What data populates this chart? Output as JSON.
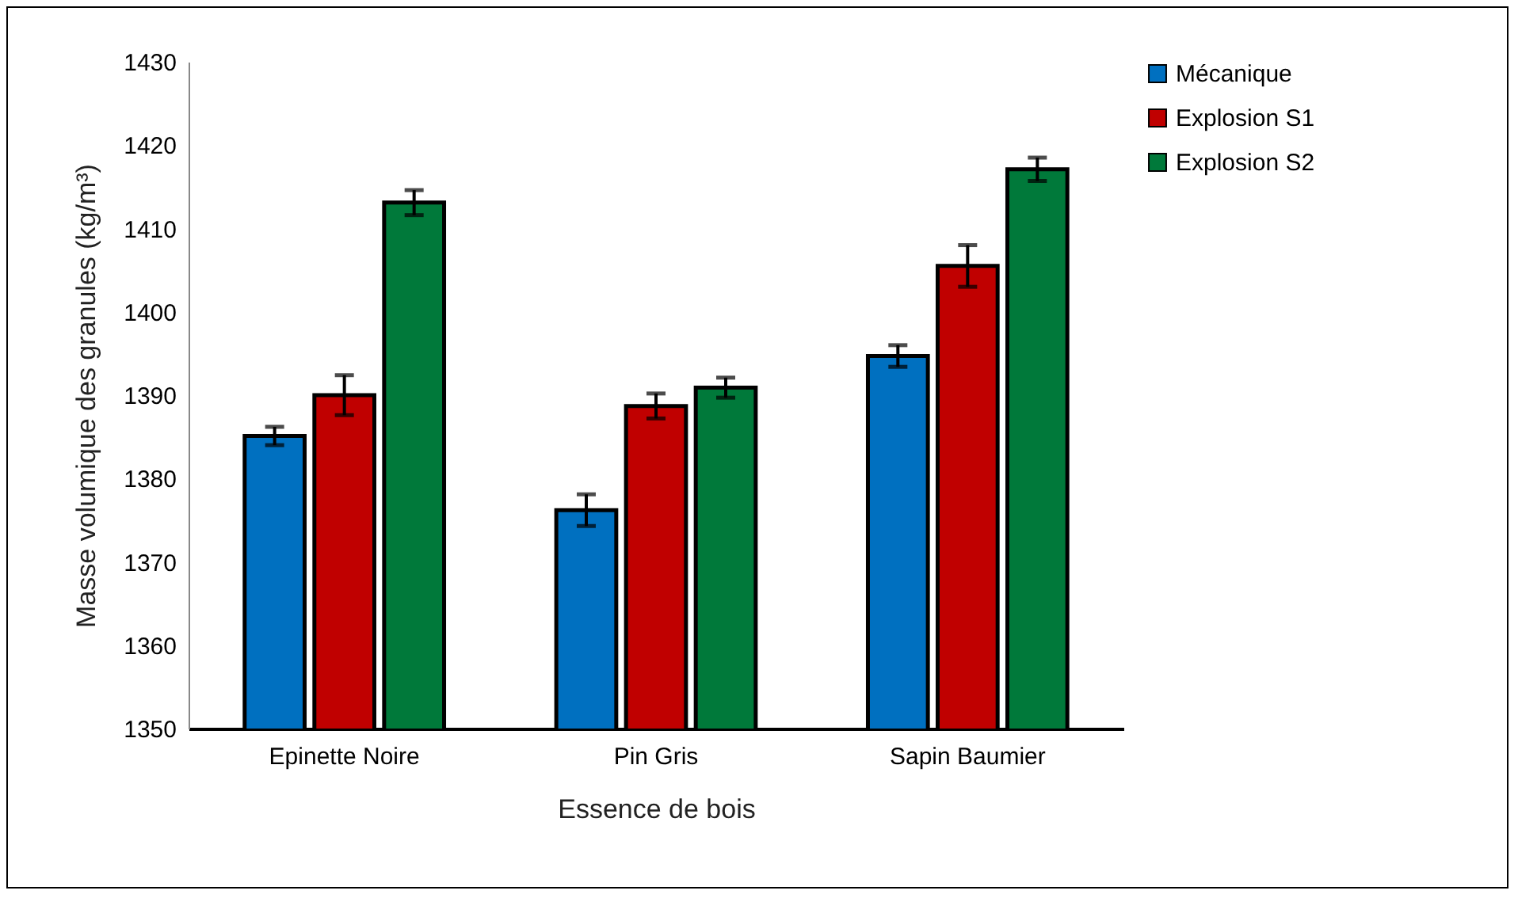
{
  "chart_data": {
    "type": "bar",
    "xlabel": "Essence de bois",
    "ylabel": "Masse volumique des granules (kg/m³)",
    "categories": [
      "Epinette Noire",
      "Pin Gris",
      "Sapin Baumier"
    ],
    "series": [
      {
        "name": "Mécanique",
        "color": "#0070c0",
        "values": [
          1385.1,
          1376.2,
          1394.7
        ],
        "errors": [
          1.1,
          1.9,
          1.3
        ]
      },
      {
        "name": "Explosion S1",
        "color": "#c00000",
        "values": [
          1390.0,
          1388.7,
          1405.5
        ],
        "errors": [
          2.4,
          1.5,
          2.5
        ]
      },
      {
        "name": "Explosion S2",
        "color": "#00793a",
        "values": [
          1413.1,
          1390.9,
          1417.1
        ],
        "errors": [
          1.5,
          1.2,
          1.4
        ]
      }
    ],
    "ylim": [
      1350,
      1430
    ],
    "yticks": [
      1350,
      1360,
      1370,
      1380,
      1390,
      1400,
      1410,
      1420,
      1430
    ],
    "grid": false,
    "legend": "right"
  }
}
